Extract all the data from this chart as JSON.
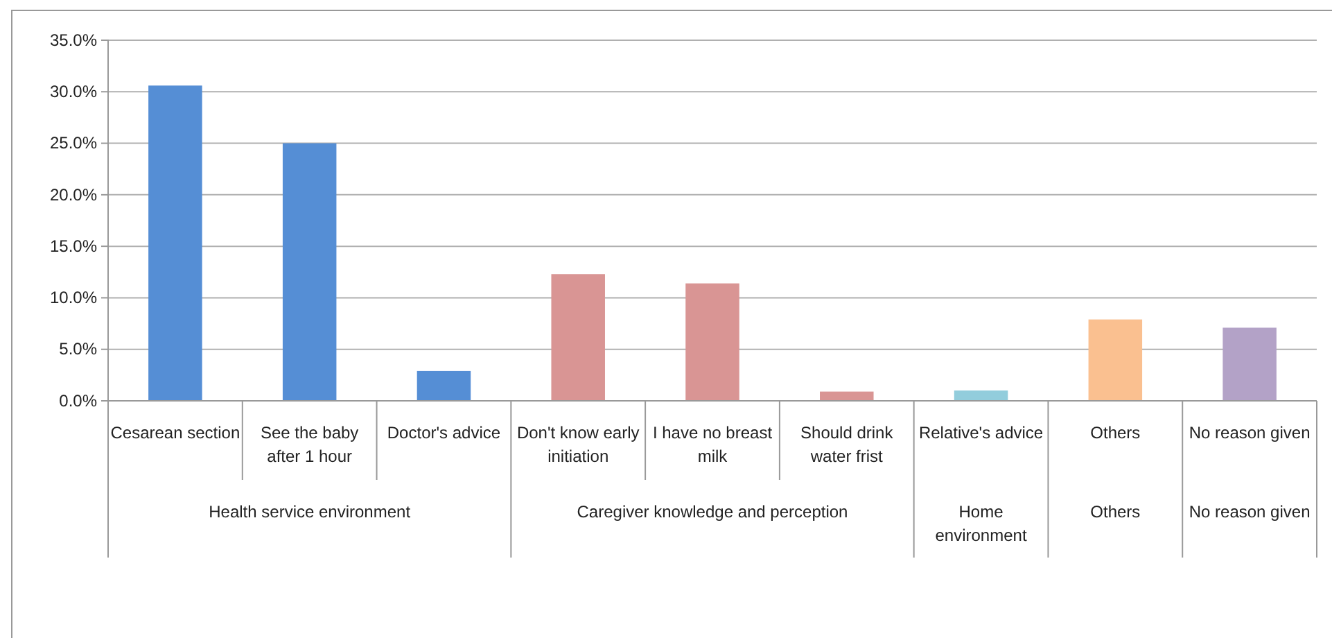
{
  "chart_data": {
    "type": "bar",
    "categories": [
      "Cesarean section",
      "See the baby after 1 hour",
      "Doctor's advice",
      "Don't know early initiation",
      "I have no breast milk",
      "Should drink water frist",
      "Relative's advice",
      "Others",
      "No reason given"
    ],
    "values": [
      30.6,
      25.0,
      2.9,
      12.3,
      11.4,
      0.9,
      1.0,
      7.9,
      7.1
    ],
    "colors": [
      "#558ed5",
      "#558ed5",
      "#558ed5",
      "#d99594",
      "#d99594",
      "#d99594",
      "#92cddc",
      "#fac090",
      "#b3a2c7"
    ],
    "ylim": [
      0,
      35
    ],
    "yticks": [
      {
        "value": 0,
        "label": "0.0%"
      },
      {
        "value": 5,
        "label": "5.0%"
      },
      {
        "value": 10,
        "label": "10.0%"
      },
      {
        "value": 15,
        "label": "15.0%"
      },
      {
        "value": 20,
        "label": "20.0%"
      },
      {
        "value": 25,
        "label": "25.0%"
      },
      {
        "value": 30,
        "label": "30.0%"
      },
      {
        "value": 35,
        "label": "35.0%"
      }
    ],
    "grid": "y",
    "annotations": [
      "Health service environment",
      "Caregiver knowledge and perception",
      "Home environment",
      "Others",
      "No reason given"
    ]
  }
}
